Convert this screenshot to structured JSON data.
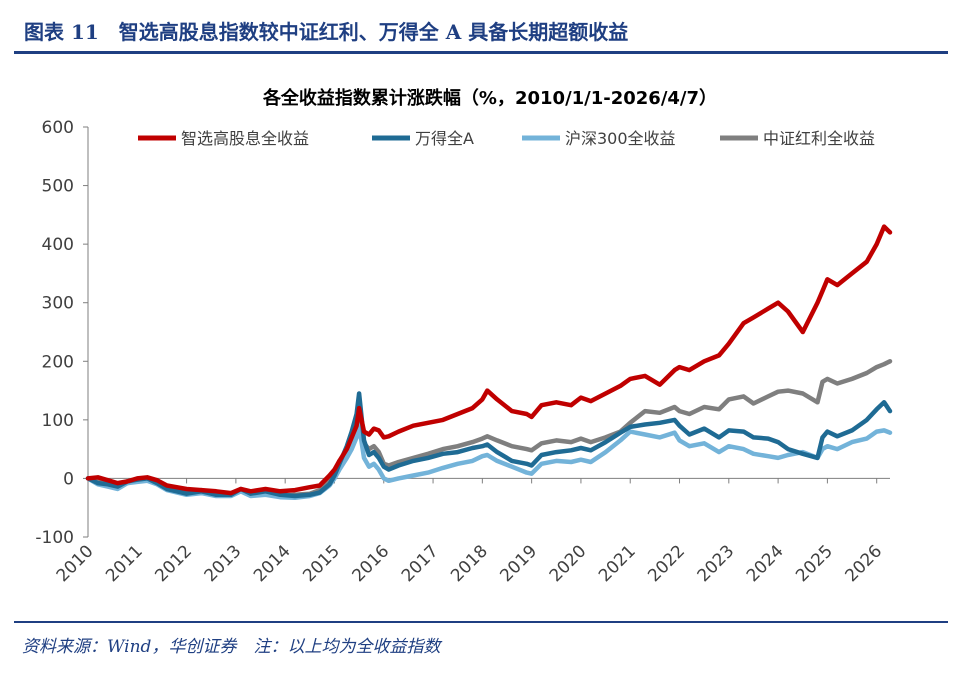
{
  "figure": {
    "title": "图表 11　智选高股息指数较中证红利、万得全 A 具备长期超额收益",
    "source": "资料来源：Wind，华创证券　注：以上均为全收益指数"
  },
  "colors": {
    "brand": "#1f3f82",
    "axis": "#7f7f7f",
    "text": "#404040"
  },
  "chart_data": {
    "type": "line",
    "title": "各全收益指数累计涨跌幅（%，2010/1/1-2026/4/7）",
    "xlabel": "",
    "ylabel": "",
    "ylim": [
      -100,
      600
    ],
    "yticks": [
      -100,
      0,
      100,
      200,
      300,
      400,
      500,
      600
    ],
    "xlim": [
      2010,
      2026.27
    ],
    "xticks": [
      2010,
      2011,
      2012,
      2013,
      2014,
      2015,
      2016,
      2017,
      2018,
      2019,
      2020,
      2021,
      2022,
      2023,
      2024,
      2025,
      2026
    ],
    "legend_position": "top",
    "grid": false,
    "series": [
      {
        "name": "中证红利全收益",
        "color": "#7f7f7f",
        "x": [
          2010.0,
          2010.2,
          2010.4,
          2010.6,
          2010.8,
          2011.0,
          2011.2,
          2011.4,
          2011.6,
          2011.8,
          2012.0,
          2012.3,
          2012.6,
          2012.9,
          2013.1,
          2013.3,
          2013.6,
          2013.9,
          2014.2,
          2014.5,
          2014.7,
          2014.9,
          2015.0,
          2015.1,
          2015.25,
          2015.35,
          2015.45,
          2015.5,
          2015.6,
          2015.7,
          2015.8,
          2015.9,
          2016.0,
          2016.1,
          2016.3,
          2016.6,
          2016.9,
          2017.2,
          2017.5,
          2017.8,
          2018.0,
          2018.1,
          2018.3,
          2018.6,
          2018.9,
          2019.0,
          2019.2,
          2019.5,
          2019.8,
          2020.0,
          2020.2,
          2020.5,
          2020.8,
          2021.0,
          2021.3,
          2021.6,
          2021.9,
          2022.0,
          2022.2,
          2022.5,
          2022.8,
          2023.0,
          2023.3,
          2023.5,
          2023.8,
          2024.0,
          2024.2,
          2024.5,
          2024.8,
          2024.9,
          2025.0,
          2025.2,
          2025.5,
          2025.8,
          2026.0,
          2026.15,
          2026.27
        ],
        "values": [
          0,
          -6,
          -4,
          -12,
          -8,
          -3,
          -2,
          -6,
          -15,
          -18,
          -22,
          -20,
          -25,
          -28,
          -20,
          -28,
          -25,
          -30,
          -28,
          -26,
          -20,
          -5,
          10,
          30,
          45,
          60,
          80,
          105,
          60,
          50,
          55,
          45,
          25,
          22,
          28,
          35,
          42,
          50,
          55,
          62,
          68,
          72,
          65,
          55,
          50,
          48,
          60,
          65,
          62,
          68,
          62,
          70,
          80,
          95,
          115,
          112,
          122,
          115,
          110,
          122,
          118,
          135,
          140,
          128,
          140,
          148,
          150,
          145,
          130,
          165,
          170,
          162,
          170,
          180,
          190,
          195,
          200
        ]
      },
      {
        "name": "沪深300全收益",
        "color": "#73b3d9",
        "x": [
          2010.0,
          2010.2,
          2010.4,
          2010.6,
          2010.8,
          2011.0,
          2011.2,
          2011.4,
          2011.6,
          2011.8,
          2012.0,
          2012.3,
          2012.6,
          2012.9,
          2013.1,
          2013.3,
          2013.6,
          2013.9,
          2014.2,
          2014.5,
          2014.7,
          2014.9,
          2015.0,
          2015.1,
          2015.25,
          2015.35,
          2015.45,
          2015.5,
          2015.6,
          2015.7,
          2015.8,
          2015.9,
          2016.0,
          2016.1,
          2016.3,
          2016.6,
          2016.9,
          2017.2,
          2017.5,
          2017.8,
          2018.0,
          2018.1,
          2018.3,
          2018.6,
          2018.9,
          2019.0,
          2019.2,
          2019.5,
          2019.8,
          2020.0,
          2020.2,
          2020.5,
          2020.8,
          2021.0,
          2021.3,
          2021.6,
          2021.9,
          2022.0,
          2022.2,
          2022.5,
          2022.8,
          2023.0,
          2023.3,
          2023.5,
          2023.8,
          2024.0,
          2024.2,
          2024.5,
          2024.8,
          2024.9,
          2025.0,
          2025.2,
          2025.5,
          2025.8,
          2026.0,
          2026.15,
          2026.27
        ],
        "values": [
          0,
          -10,
          -14,
          -18,
          -8,
          -6,
          -4,
          -10,
          -20,
          -24,
          -28,
          -25,
          -30,
          -30,
          -22,
          -30,
          -28,
          -32,
          -33,
          -30,
          -25,
          -12,
          0,
          15,
          35,
          50,
          70,
          90,
          35,
          20,
          25,
          15,
          0,
          -4,
          0,
          5,
          10,
          18,
          25,
          30,
          38,
          40,
          30,
          20,
          10,
          8,
          25,
          30,
          28,
          32,
          28,
          45,
          65,
          80,
          75,
          70,
          78,
          65,
          55,
          60,
          45,
          55,
          50,
          42,
          38,
          35,
          40,
          45,
          35,
          50,
          55,
          50,
          62,
          68,
          80,
          82,
          78
        ]
      },
      {
        "name": "万得全A",
        "color": "#1f6b94",
        "x": [
          2010.0,
          2010.2,
          2010.4,
          2010.6,
          2010.8,
          2011.0,
          2011.2,
          2011.4,
          2011.6,
          2011.8,
          2012.0,
          2012.3,
          2012.6,
          2012.9,
          2013.1,
          2013.3,
          2013.6,
          2013.9,
          2014.2,
          2014.5,
          2014.7,
          2014.9,
          2015.0,
          2015.1,
          2015.25,
          2015.35,
          2015.45,
          2015.5,
          2015.6,
          2015.7,
          2015.8,
          2015.9,
          2016.0,
          2016.1,
          2016.3,
          2016.6,
          2016.9,
          2017.2,
          2017.5,
          2017.8,
          2018.0,
          2018.1,
          2018.3,
          2018.6,
          2018.9,
          2019.0,
          2019.2,
          2019.5,
          2019.8,
          2020.0,
          2020.2,
          2020.5,
          2020.8,
          2021.0,
          2021.3,
          2021.6,
          2021.9,
          2022.0,
          2022.2,
          2022.5,
          2022.8,
          2023.0,
          2023.3,
          2023.5,
          2023.8,
          2024.0,
          2024.2,
          2024.5,
          2024.8,
          2024.9,
          2025.0,
          2025.2,
          2025.5,
          2025.8,
          2026.0,
          2026.15,
          2026.27
        ],
        "values": [
          0,
          -8,
          -10,
          -14,
          -5,
          -2,
          0,
          -8,
          -18,
          -22,
          -26,
          -22,
          -28,
          -28,
          -18,
          -26,
          -22,
          -28,
          -30,
          -28,
          -24,
          -10,
          5,
          25,
          55,
          80,
          110,
          145,
          65,
          40,
          45,
          35,
          20,
          15,
          22,
          30,
          35,
          42,
          45,
          52,
          55,
          58,
          45,
          30,
          25,
          22,
          40,
          45,
          48,
          52,
          48,
          62,
          78,
          88,
          92,
          95,
          100,
          90,
          75,
          85,
          70,
          82,
          80,
          70,
          68,
          62,
          50,
          42,
          35,
          70,
          80,
          72,
          82,
          100,
          118,
          130,
          115
        ]
      },
      {
        "name": "智选高股息全收益",
        "color": "#c00000",
        "x": [
          2010.0,
          2010.2,
          2010.4,
          2010.6,
          2010.8,
          2011.0,
          2011.2,
          2011.4,
          2011.6,
          2011.8,
          2012.0,
          2012.3,
          2012.6,
          2012.9,
          2013.1,
          2013.3,
          2013.6,
          2013.9,
          2014.2,
          2014.5,
          2014.7,
          2014.9,
          2015.0,
          2015.1,
          2015.25,
          2015.35,
          2015.45,
          2015.5,
          2015.6,
          2015.7,
          2015.8,
          2015.9,
          2016.0,
          2016.1,
          2016.3,
          2016.6,
          2016.9,
          2017.2,
          2017.5,
          2017.8,
          2018.0,
          2018.1,
          2018.3,
          2018.6,
          2018.9,
          2019.0,
          2019.2,
          2019.5,
          2019.8,
          2020.0,
          2020.2,
          2020.5,
          2020.8,
          2021.0,
          2021.3,
          2021.6,
          2021.9,
          2022.0,
          2022.2,
          2022.5,
          2022.8,
          2023.0,
          2023.3,
          2023.5,
          2023.8,
          2024.0,
          2024.2,
          2024.5,
          2024.8,
          2024.9,
          2025.0,
          2025.2,
          2025.5,
          2025.8,
          2026.0,
          2026.15,
          2026.27
        ],
        "values": [
          0,
          2,
          -3,
          -8,
          -5,
          0,
          2,
          -3,
          -12,
          -15,
          -18,
          -20,
          -22,
          -25,
          -18,
          -22,
          -18,
          -22,
          -20,
          -15,
          -12,
          5,
          15,
          30,
          50,
          70,
          90,
          120,
          80,
          75,
          85,
          82,
          70,
          72,
          80,
          90,
          95,
          100,
          110,
          120,
          135,
          150,
          135,
          115,
          110,
          105,
          125,
          130,
          125,
          138,
          132,
          145,
          158,
          170,
          175,
          160,
          185,
          190,
          185,
          200,
          210,
          230,
          265,
          275,
          290,
          300,
          285,
          250,
          300,
          320,
          340,
          330,
          350,
          370,
          400,
          430,
          420
        ]
      }
    ]
  }
}
